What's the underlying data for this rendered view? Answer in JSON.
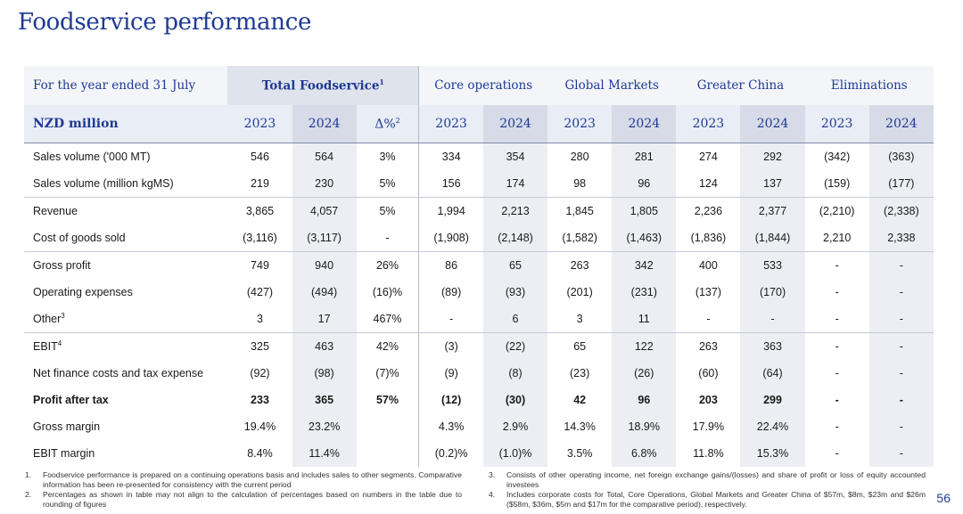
{
  "title": "Foodservice performance",
  "header": {
    "period_label": "For the year ended 31 July",
    "groups": [
      {
        "label": "Total Foodservice",
        "sup": "1"
      },
      {
        "label": "Core operations"
      },
      {
        "label": "Global Markets"
      },
      {
        "label": "Greater China"
      },
      {
        "label": "Eliminations"
      }
    ],
    "unit_label": "NZD million",
    "years": [
      "2023",
      "2024"
    ],
    "delta_label": "Δ%",
    "delta_sup": "2"
  },
  "rows": [
    {
      "label": "Sales volume ('000 MT)",
      "sup": "",
      "cells": [
        "546",
        "564",
        "3%",
        "334",
        "354",
        "280",
        "281",
        "274",
        "292",
        "(342)",
        "(363)"
      ]
    },
    {
      "label": "Sales volume (million kgMS)",
      "sup": "",
      "cells": [
        "219",
        "230",
        "5%",
        "156",
        "174",
        "98",
        "96",
        "124",
        "137",
        "(159)",
        "(177)"
      ]
    },
    {
      "label": "Revenue",
      "sup": "",
      "cells": [
        "3,865",
        "4,057",
        "5%",
        "1,994",
        "2,213",
        "1,845",
        "1,805",
        "2,236",
        "2,377",
        "(2,210)",
        "(2,338)"
      ]
    },
    {
      "label": "Cost of goods sold",
      "sup": "",
      "cells": [
        "(3,116)",
        "(3,117)",
        "-",
        "(1,908)",
        "(2,148)",
        "(1,582)",
        "(1,463)",
        "(1,836)",
        "(1,844)",
        "2,210",
        "2,338"
      ]
    },
    {
      "label": "Gross profit",
      "sup": "",
      "cells": [
        "749",
        "940",
        "26%",
        "86",
        "65",
        "263",
        "342",
        "400",
        "533",
        "-",
        "-"
      ]
    },
    {
      "label": "Operating expenses",
      "sup": "",
      "cells": [
        "(427)",
        "(494)",
        "(16)%",
        "(89)",
        "(93)",
        "(201)",
        "(231)",
        "(137)",
        "(170)",
        "-",
        "-"
      ]
    },
    {
      "label": "Other",
      "sup": "3",
      "cells": [
        "3",
        "17",
        "467%",
        "-",
        "6",
        "3",
        "11",
        "-",
        "-",
        "-",
        "-"
      ]
    },
    {
      "label": "EBIT",
      "sup": "4",
      "cells": [
        "325",
        "463",
        "42%",
        "(3)",
        "(22)",
        "65",
        "122",
        "263",
        "363",
        "-",
        "-"
      ]
    },
    {
      "label": "Net finance costs and tax expense",
      "sup": "",
      "cells": [
        "(92)",
        "(98)",
        "(7)%",
        "(9)",
        "(8)",
        "(23)",
        "(26)",
        "(60)",
        "(64)",
        "-",
        "-"
      ]
    },
    {
      "label": "Profit after tax",
      "sup": "",
      "cells": [
        "233",
        "365",
        "57%",
        "(12)",
        "(30)",
        "42",
        "96",
        "203",
        "299",
        "-",
        "-"
      ]
    },
    {
      "label": "Gross margin",
      "sup": "",
      "cells": [
        "19.4%",
        "23.2%",
        "",
        "4.3%",
        "2.9%",
        "14.3%",
        "18.9%",
        "17.9%",
        "22.4%",
        "-",
        "-"
      ]
    },
    {
      "label": "EBIT margin",
      "sup": "",
      "cells": [
        "8.4%",
        "11.4%",
        "",
        "(0.2)%",
        "(1.0)%",
        "3.5%",
        "6.8%",
        "11.8%",
        "15.3%",
        "-",
        "-"
      ]
    }
  ],
  "footnotes": [
    {
      "num": "1.",
      "text": "Foodservice performance is prepared on a continuing operations basis and includes sales to other segments. Comparative information has been re-presented for consistency with the current period"
    },
    {
      "num": "2.",
      "text": "Percentages as shown in table may not align to the calculation of percentages based on numbers in the table due to rounding of figures"
    },
    {
      "num": "3.",
      "text": "Consists of other operating income, net foreign exchange gains/(losses) and share of profit or loss of equity accounted investees"
    },
    {
      "num": "4.",
      "text": "Includes corporate costs for Total, Core Operations, Global Markets and Greater China of $57m, $8m, $23m and $26m ($58m, $36m, $5m and $17m for the comparative period), respectively."
    }
  ],
  "page_number": "56"
}
